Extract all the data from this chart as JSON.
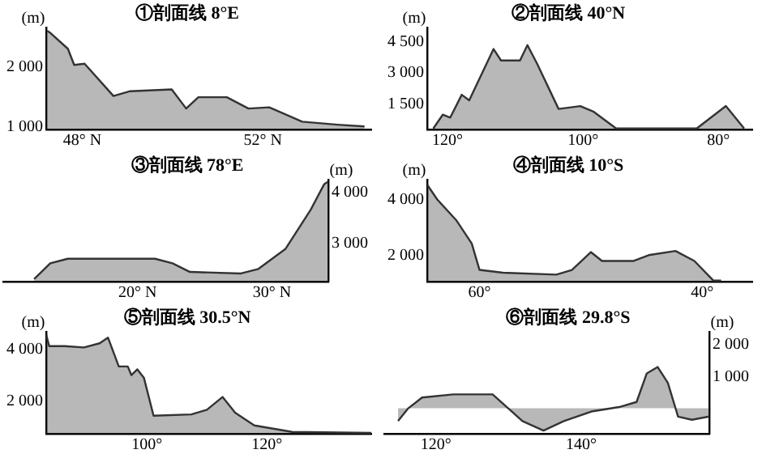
{
  "chart_data": [
    {
      "type": "area",
      "title": "①剖面线 8°E",
      "ylabel": "(m)",
      "xlim": [
        47.2,
        54.4
      ],
      "xticks": [
        {
          "value": 48,
          "label": "48° N"
        },
        {
          "value": 52,
          "label": "52° N"
        }
      ],
      "ylim": [
        950,
        2650
      ],
      "yticks": [
        {
          "value": 1000,
          "label": "1 000"
        },
        {
          "value": 2000,
          "label": "2 000"
        }
      ],
      "x": [
        47.22,
        47.3,
        47.68,
        47.82,
        48.05,
        48.69,
        49.06,
        49.98,
        50.3,
        50.57,
        51.2,
        51.68,
        52.14,
        52.87,
        53.66,
        54.25
      ],
      "series": [
        {
          "color": "#333333",
          "values": [
            2600,
            2560,
            2300,
            2030,
            2050,
            1510,
            1590,
            1620,
            1300,
            1490,
            1490,
            1300,
            1320,
            1080,
            1030,
            1000
          ]
        }
      ]
    },
    {
      "type": "area",
      "title": "②剖面线 40°N",
      "ylabel": "(m)",
      "xlim": [
        123,
        75
      ],
      "xticks": [
        {
          "value": 120,
          "label": "120°"
        },
        {
          "value": 100,
          "label": "100°"
        },
        {
          "value": 80,
          "label": "80°"
        }
      ],
      "ylim": [
        250,
        5200
      ],
      "yticks": [
        {
          "value": 1500,
          "label": "1 500"
        },
        {
          "value": 3000,
          "label": "3 000"
        },
        {
          "value": 4500,
          "label": "4 500"
        }
      ],
      "x": [
        122.1,
        120.7,
        119.6,
        117.9,
        116.8,
        113.2,
        112.1,
        109.3,
        108.2,
        106.8,
        103.6,
        100.4,
        98.4,
        95.1,
        83.2,
        78.9,
        76.2
      ],
      "series": [
        {
          "color": "#333333",
          "values": [
            300,
            970,
            830,
            1940,
            1670,
            4170,
            3610,
            3610,
            4360,
            3470,
            1250,
            1390,
            1110,
            300,
            300,
            1390,
            300
          ]
        }
      ]
    },
    {
      "type": "area",
      "title": "③剖面线 78°E",
      "y2label": "(m)",
      "xlim": [
        10,
        34.2
      ],
      "xticks": [
        {
          "value": 20,
          "label": "20° N"
        },
        {
          "value": 30,
          "label": "30° N"
        }
      ],
      "y2lim": [
        2250,
        4250
      ],
      "y2ticks": [
        {
          "value": 3000,
          "label": "3 000"
        },
        {
          "value": 4000,
          "label": "4 000"
        }
      ],
      "x": [
        12.3,
        13.5,
        14.8,
        21.3,
        22.6,
        23.9,
        27.7,
        29.0,
        31.0,
        32.9,
        33.9,
        34.2
      ],
      "series": [
        {
          "color": "#333333",
          "axis": "y2",
          "values": [
            2300,
            2610,
            2700,
            2700,
            2610,
            2440,
            2410,
            2500,
            2890,
            3670,
            4170,
            4220
          ]
        }
      ]
    },
    {
      "type": "area",
      "title": "④剖面线 10°S",
      "ylabel": "(m)",
      "xlim": [
        64.7,
        35.5
      ],
      "xticks": [
        {
          "value": 60,
          "label": "60°"
        },
        {
          "value": 40,
          "label": "40°"
        }
      ],
      "ylim": [
        1050,
        4700
      ],
      "yticks": [
        {
          "value": 2000,
          "label": "2 000"
        },
        {
          "value": 4000,
          "label": "4 000"
        }
      ],
      "x": [
        64.7,
        63.8,
        62.1,
        60.7,
        60,
        57.9,
        53.1,
        51.7,
        50,
        49,
        46.2,
        44.8,
        42.4,
        40.7,
        39,
        38.3
      ],
      "series": [
        {
          "color": "#333333",
          "values": [
            4530,
            4000,
            3260,
            2420,
            1470,
            1370,
            1300,
            1470,
            2110,
            1790,
            1790,
            2000,
            2150,
            1790,
            1090,
            1090
          ]
        }
      ]
    },
    {
      "type": "area",
      "title": "⑤剖面线 30.5°N",
      "ylabel": "(m)",
      "xlim": [
        83.2,
        137.4
      ],
      "xticks": [
        {
          "value": 100,
          "label": "100°"
        },
        {
          "value": 120,
          "label": "120°"
        }
      ],
      "ylim": [
        750,
        4650
      ],
      "yticks": [
        {
          "value": 2000,
          "label": "2 000"
        },
        {
          "value": 4000,
          "label": "4 000"
        }
      ],
      "x": [
        83.2,
        83.7,
        86.3,
        89.5,
        92.1,
        93.5,
        95.3,
        96.8,
        97.4,
        98.4,
        99.5,
        101.1,
        107.4,
        110,
        112.6,
        114.7,
        117.9,
        124.2,
        137.4
      ],
      "series": [
        {
          "color": "#333333",
          "values": [
            4550,
            4110,
            4110,
            4060,
            4220,
            4440,
            3330,
            3330,
            3000,
            3220,
            2890,
            1440,
            1490,
            1670,
            2160,
            1560,
            1070,
            820,
            780
          ]
        }
      ]
    },
    {
      "type": "area",
      "title": "⑥剖面线 29.8°S",
      "y2label": "(m)",
      "xlim": [
        112.9,
        157.6
      ],
      "xticks": [
        {
          "value": 120,
          "label": "120°"
        },
        {
          "value": 140,
          "label": "140°"
        }
      ],
      "y2lim": [
        -800,
        2400
      ],
      "y2ticks": [
        {
          "value": 1000,
          "label": "1 000"
        },
        {
          "value": 2000,
          "label": "2 000"
        }
      ],
      "x": [
        114.8,
        116.2,
        118.1,
        122.4,
        127.8,
        131.9,
        134.8,
        137.6,
        141.4,
        145.2,
        147.6,
        149,
        150.5,
        151.9,
        153.3,
        155.2,
        157.6
      ],
      "series": [
        {
          "color": "#333333",
          "axis": "y2",
          "values": [
            -400,
            0,
            340,
            440,
            440,
            -400,
            -700,
            -400,
            -100,
            40,
            200,
            1100,
            1300,
            800,
            -260,
            -360,
            -260
          ]
        }
      ]
    }
  ]
}
